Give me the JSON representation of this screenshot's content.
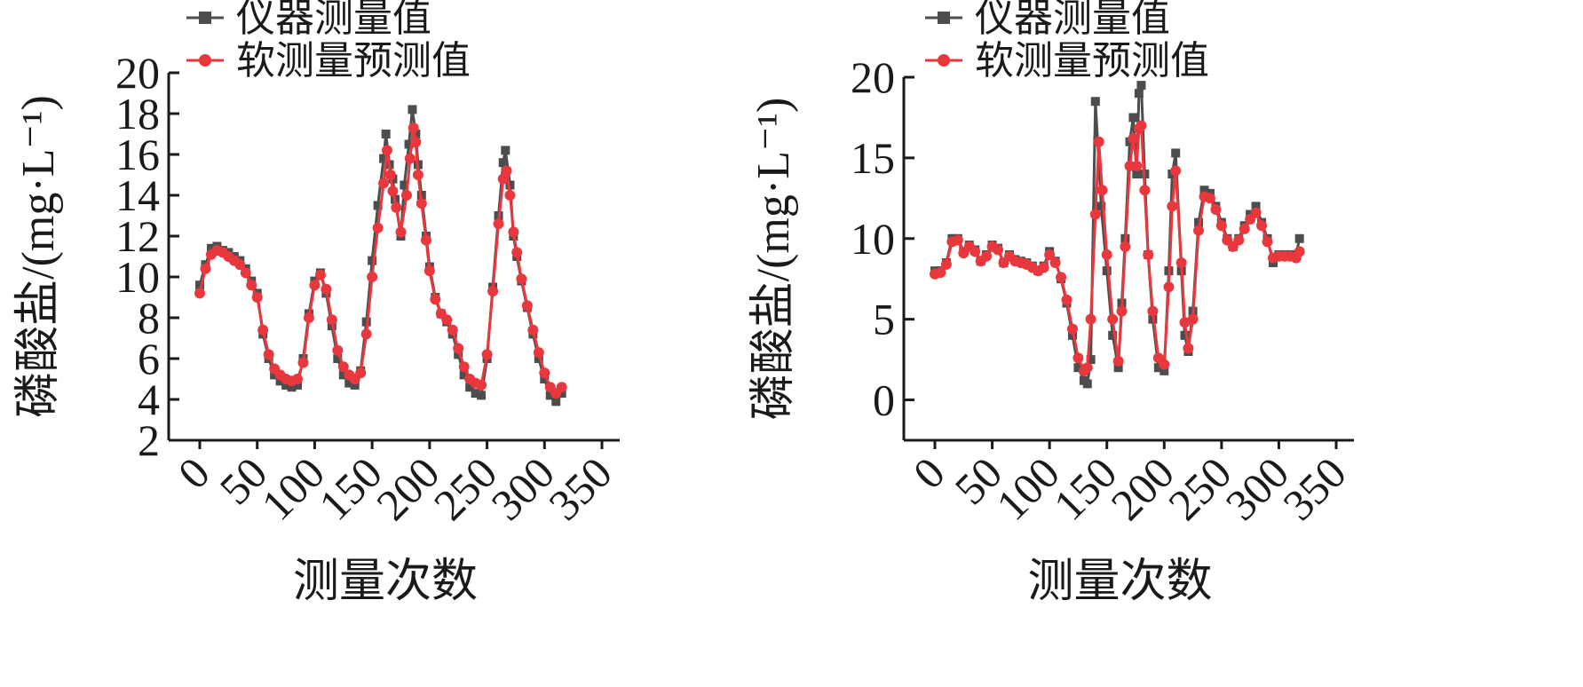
{
  "chart_data": [
    {
      "type": "line",
      "xlabel": "测量次数",
      "ylabel": "磷酸盐/(mg·L⁻¹)",
      "xlim": [
        0,
        350
      ],
      "ylim": [
        2,
        20
      ],
      "xticks": [
        0,
        50,
        100,
        150,
        200,
        250,
        300,
        350
      ],
      "yticks": [
        2,
        4,
        6,
        8,
        10,
        12,
        14,
        16,
        18,
        20
      ],
      "xtick_labels": [
        "0",
        "50",
        "100",
        "150",
        "200",
        "250",
        "300",
        "350"
      ],
      "ytick_labels": [
        "2",
        "4",
        "6",
        "8",
        "10",
        "12",
        "14",
        "16",
        "18",
        "20"
      ],
      "legend_position": "top-left",
      "grid": false,
      "series": [
        {
          "name": "仪器测量值",
          "color": "#4d4d4d",
          "marker": "square",
          "x": [
            0,
            5,
            10,
            15,
            20,
            25,
            30,
            35,
            40,
            45,
            50,
            55,
            60,
            65,
            70,
            75,
            80,
            85,
            90,
            95,
            100,
            105,
            110,
            115,
            120,
            125,
            130,
            135,
            140,
            145,
            150,
            155,
            160,
            162,
            165,
            168,
            170,
            175,
            178,
            182,
            185,
            188,
            190,
            193,
            197,
            200,
            205,
            210,
            215,
            220,
            225,
            230,
            235,
            240,
            245,
            250,
            255,
            260,
            264,
            266,
            270,
            273,
            276,
            280,
            285,
            290,
            295,
            300,
            305,
            310,
            315
          ],
          "values": [
            9.6,
            10.6,
            11.4,
            11.5,
            11.3,
            11.2,
            11.0,
            10.8,
            10.4,
            9.8,
            9.2,
            7.2,
            6.0,
            5.2,
            4.9,
            4.7,
            4.6,
            4.7,
            6.0,
            8.2,
            9.8,
            10.2,
            9.2,
            7.6,
            6.0,
            5.2,
            4.8,
            4.7,
            5.4,
            7.8,
            10.8,
            13.5,
            15.8,
            17.0,
            15.5,
            14.8,
            13.8,
            12.0,
            14.5,
            16.5,
            18.2,
            17.0,
            15.5,
            14.0,
            12.0,
            10.5,
            9.0,
            8.2,
            7.8,
            7.2,
            6.2,
            5.2,
            4.6,
            4.3,
            4.2,
            6.0,
            9.5,
            13.0,
            15.6,
            16.2,
            14.5,
            12.0,
            11.0,
            9.8,
            8.5,
            7.2,
            6.0,
            5.0,
            4.2,
            3.9,
            4.3
          ]
        },
        {
          "name": "软测量预测值",
          "color": "#e8383d",
          "marker": "circle",
          "x": [
            0,
            5,
            10,
            15,
            20,
            25,
            30,
            35,
            40,
            45,
            50,
            55,
            60,
            65,
            70,
            75,
            80,
            85,
            90,
            95,
            100,
            105,
            110,
            115,
            120,
            125,
            130,
            135,
            140,
            145,
            150,
            155,
            160,
            163,
            166,
            168,
            171,
            175,
            180,
            183,
            186,
            188,
            190,
            193,
            197,
            200,
            205,
            210,
            215,
            220,
            225,
            230,
            235,
            240,
            245,
            250,
            255,
            260,
            264,
            267,
            270,
            273,
            276,
            280,
            285,
            290,
            295,
            300,
            305,
            310,
            315
          ],
          "values": [
            9.2,
            10.4,
            11.1,
            11.3,
            11.2,
            11.0,
            10.8,
            10.6,
            10.2,
            9.6,
            9.0,
            7.4,
            6.2,
            5.5,
            5.2,
            5.0,
            4.9,
            5.0,
            5.8,
            8.0,
            9.6,
            10.1,
            9.4,
            7.9,
            6.4,
            5.6,
            5.2,
            5.0,
            5.3,
            7.2,
            10.0,
            12.4,
            14.6,
            16.2,
            15.0,
            14.2,
            13.4,
            12.2,
            14.0,
            15.8,
            17.3,
            16.6,
            15.0,
            13.6,
            11.8,
            10.3,
            8.9,
            8.2,
            7.9,
            7.4,
            6.5,
            5.6,
            5.0,
            4.8,
            4.7,
            6.2,
            9.3,
            12.6,
            14.8,
            15.2,
            14.0,
            12.2,
            11.2,
            9.9,
            8.6,
            7.4,
            6.3,
            5.3,
            4.6,
            4.3,
            4.6
          ]
        }
      ]
    },
    {
      "type": "line",
      "xlabel": "测量次数",
      "ylabel": "磷酸盐/(mg·L⁻¹)",
      "xlim": [
        0,
        350
      ],
      "ylim": [
        -2.5,
        20
      ],
      "xticks": [
        0,
        50,
        100,
        150,
        200,
        250,
        300,
        350
      ],
      "yticks": [
        0,
        5,
        10,
        15,
        20
      ],
      "xtick_labels": [
        "0",
        "50",
        "100",
        "150",
        "200",
        "250",
        "300",
        "350"
      ],
      "ytick_labels": [
        "0",
        "5",
        "10",
        "15",
        "20"
      ],
      "legend_position": "top-left",
      "grid": false,
      "series": [
        {
          "name": "仪器测量值",
          "color": "#4d4d4d",
          "marker": "square",
          "x": [
            0,
            5,
            10,
            15,
            20,
            25,
            30,
            35,
            40,
            45,
            50,
            55,
            60,
            65,
            70,
            75,
            80,
            85,
            90,
            95,
            100,
            105,
            110,
            115,
            120,
            125,
            130,
            133,
            136,
            140,
            142,
            145,
            150,
            155,
            160,
            163,
            166,
            170,
            173,
            176,
            178,
            180,
            183,
            186,
            190,
            195,
            200,
            204,
            207,
            210,
            215,
            218,
            221,
            225,
            230,
            235,
            240,
            245,
            250,
            255,
            260,
            265,
            270,
            275,
            280,
            285,
            290,
            295,
            300,
            305,
            310,
            315,
            318
          ],
          "values": [
            8.0,
            8.0,
            8.5,
            10.0,
            10.0,
            9.2,
            9.6,
            9.3,
            8.6,
            9.0,
            9.6,
            9.4,
            8.5,
            9.0,
            8.7,
            8.6,
            8.5,
            8.3,
            8.0,
            8.3,
            9.2,
            8.6,
            7.5,
            6.0,
            4.0,
            2.0,
            1.2,
            1.0,
            2.5,
            18.5,
            16.0,
            12.0,
            8.0,
            4.0,
            2.0,
            6.0,
            10.0,
            16.0,
            17.5,
            14.0,
            19.0,
            19.5,
            14.0,
            9.0,
            5.0,
            2.0,
            1.8,
            8.0,
            14.0,
            15.3,
            8.0,
            4.0,
            3.0,
            5.5,
            11.0,
            13.0,
            12.8,
            12.0,
            11.0,
            10.0,
            9.5,
            10.0,
            10.8,
            11.5,
            12.0,
            11.0,
            10.0,
            8.5,
            9.0,
            9.0,
            9.0,
            9.0,
            10.0
          ]
        },
        {
          "name": "软测量预测值",
          "color": "#e8383d",
          "marker": "circle",
          "x": [
            0,
            5,
            10,
            15,
            20,
            25,
            30,
            35,
            40,
            45,
            50,
            55,
            60,
            65,
            70,
            75,
            80,
            85,
            90,
            95,
            100,
            105,
            110,
            115,
            120,
            125,
            130,
            133,
            136,
            140,
            143,
            146,
            150,
            155,
            160,
            163,
            166,
            170,
            173,
            176,
            178,
            180,
            183,
            186,
            190,
            195,
            200,
            204,
            207,
            210,
            215,
            218,
            221,
            225,
            230,
            235,
            240,
            245,
            250,
            255,
            260,
            265,
            270,
            275,
            280,
            285,
            290,
            295,
            300,
            305,
            310,
            315,
            318
          ],
          "values": [
            7.8,
            7.9,
            8.4,
            9.8,
            9.9,
            9.1,
            9.5,
            9.2,
            8.6,
            8.9,
            9.5,
            9.3,
            8.5,
            8.9,
            8.6,
            8.5,
            8.4,
            8.2,
            8.0,
            8.2,
            9.0,
            8.5,
            7.6,
            6.2,
            4.4,
            2.6,
            1.8,
            2.0,
            5.0,
            11.5,
            16.0,
            13.0,
            9.0,
            5.0,
            2.4,
            5.5,
            9.5,
            14.5,
            16.2,
            14.5,
            16.8,
            17.0,
            13.0,
            9.0,
            5.5,
            2.6,
            2.2,
            7.0,
            12.0,
            14.2,
            8.5,
            4.8,
            3.2,
            5.0,
            10.5,
            12.6,
            12.5,
            11.8,
            10.8,
            9.9,
            9.5,
            9.9,
            10.6,
            11.2,
            11.6,
            10.8,
            9.8,
            8.8,
            8.9,
            8.9,
            8.9,
            8.8,
            9.2
          ]
        }
      ]
    }
  ]
}
